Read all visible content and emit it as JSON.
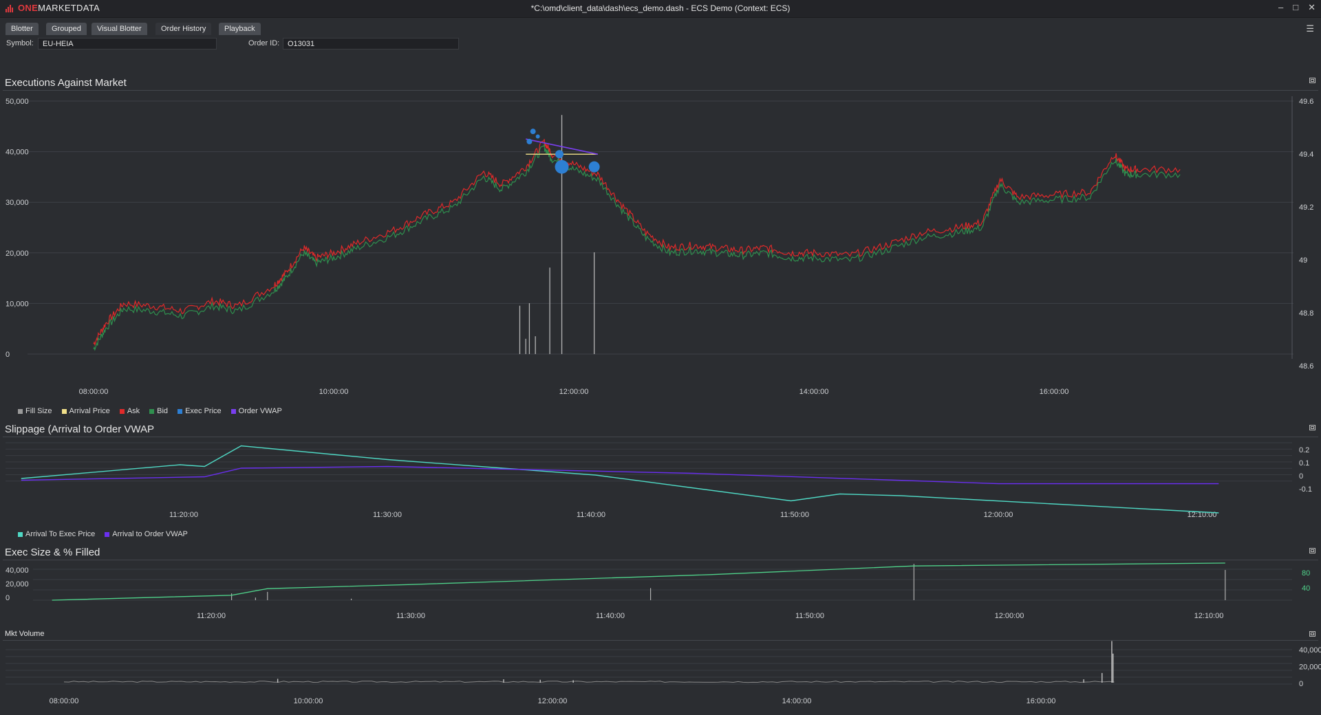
{
  "app": {
    "logo_one": "ONE",
    "logo_md": "MARKETDATA",
    "window_title": "*C:\\omd\\client_data\\dash\\ecs_demo.dash - ECS Demo (Context: ECS)",
    "controls": {
      "minimize": "–",
      "restore": "□",
      "close": "✕"
    }
  },
  "tabs": [
    {
      "label": "Blotter"
    },
    {
      "label": "Grouped"
    },
    {
      "label": "Visual Blotter"
    },
    {
      "label": "Order History"
    },
    {
      "label": "Playback"
    }
  ],
  "filters": {
    "symbol_label": "Symbol:",
    "symbol_value": "EU-HEIA",
    "order_label": "Order ID:",
    "order_value": "O13031"
  },
  "panels": {
    "exec": "Executions Against Market",
    "slip": "Slippage (Arrival to Order VWAP",
    "size": "Exec Size & % Filled",
    "mkt": "Mkt Volume"
  },
  "legends": {
    "exec": [
      {
        "name": "Fill Size",
        "color": "#9a9a9a"
      },
      {
        "name": "Arrival Price",
        "color": "#f1e08a"
      },
      {
        "name": "Ask",
        "color": "#e02a2a"
      },
      {
        "name": "Bid",
        "color": "#2f8f4e"
      },
      {
        "name": "Exec Price",
        "color": "#2d7fd3"
      },
      {
        "name": "Order VWAP",
        "color": "#7a3ff0"
      }
    ],
    "slip": [
      {
        "name": "Arrival To Exec Price",
        "color": "#4fd8c4"
      },
      {
        "name": "Arrival to Order VWAP",
        "color": "#6a2ff0"
      }
    ]
  },
  "chart_data": [
    {
      "type": "line",
      "title": "Executions Against Market",
      "x_ticks": [
        "08:00:00",
        "10:00:00",
        "12:00:00",
        "14:00:00",
        "16:00:00"
      ],
      "y_left_ticks": [
        "50,000",
        "40,000",
        "30,000",
        "20,000",
        "10,000",
        "0"
      ],
      "y_right_ticks": [
        "49.6",
        "49.4",
        "49.2",
        "49",
        "48.8",
        "48.6"
      ],
      "ylim_price": [
        48.6,
        49.6
      ],
      "ylim_size": [
        0,
        50000
      ],
      "series": [
        {
          "name": "Bid",
          "color": "#2f8f4e",
          "points": [
            [
              8.0,
              48.62
            ],
            [
              8.1,
              48.7
            ],
            [
              8.25,
              48.78
            ],
            [
              8.5,
              48.77
            ],
            [
              8.75,
              48.75
            ],
            [
              9.0,
              48.79
            ],
            [
              9.2,
              48.77
            ],
            [
              9.5,
              48.85
            ],
            [
              9.6,
              48.9
            ],
            [
              9.75,
              49.0
            ],
            [
              9.85,
              48.96
            ],
            [
              10.0,
              48.98
            ],
            [
              10.2,
              49.02
            ],
            [
              10.5,
              49.07
            ],
            [
              10.75,
              49.13
            ],
            [
              11.0,
              49.18
            ],
            [
              11.25,
              49.3
            ],
            [
              11.4,
              49.25
            ],
            [
              11.6,
              49.32
            ],
            [
              11.75,
              49.42
            ],
            [
              11.82,
              49.37
            ],
            [
              12.0,
              49.33
            ],
            [
              12.2,
              49.29
            ],
            [
              12.4,
              49.17
            ],
            [
              12.6,
              49.06
            ],
            [
              12.8,
              49.0
            ],
            [
              13.0,
              49.01
            ],
            [
              13.2,
              49.0
            ],
            [
              13.4,
              48.99
            ],
            [
              13.6,
              49.0
            ],
            [
              13.8,
              48.98
            ],
            [
              14.0,
              48.98
            ],
            [
              14.3,
              48.97
            ],
            [
              14.6,
              49.01
            ],
            [
              14.9,
              49.06
            ],
            [
              15.2,
              49.08
            ],
            [
              15.4,
              49.1
            ],
            [
              15.55,
              49.27
            ],
            [
              15.7,
              49.2
            ],
            [
              16.0,
              49.21
            ],
            [
              16.3,
              49.22
            ],
            [
              16.5,
              49.37
            ],
            [
              16.6,
              49.31
            ],
            [
              16.7,
              49.31
            ],
            [
              17.05,
              49.31
            ]
          ]
        },
        {
          "name": "Ask",
          "color": "#e02a2a",
          "points": [
            [
              8.0,
              48.64
            ],
            [
              8.1,
              48.72
            ],
            [
              8.25,
              48.8
            ],
            [
              8.5,
              48.79
            ],
            [
              8.75,
              48.77
            ],
            [
              9.0,
              48.81
            ],
            [
              9.2,
              48.79
            ],
            [
              9.5,
              48.87
            ],
            [
              9.6,
              48.92
            ],
            [
              9.75,
              49.02
            ],
            [
              9.85,
              48.98
            ],
            [
              10.0,
              49.0
            ],
            [
              10.2,
              49.04
            ],
            [
              10.5,
              49.09
            ],
            [
              10.75,
              49.15
            ],
            [
              11.0,
              49.2
            ],
            [
              11.25,
              49.32
            ],
            [
              11.4,
              49.27
            ],
            [
              11.6,
              49.34
            ],
            [
              11.75,
              49.44
            ],
            [
              11.82,
              49.39
            ],
            [
              12.0,
              49.35
            ],
            [
              12.2,
              49.31
            ],
            [
              12.4,
              49.19
            ],
            [
              12.6,
              49.08
            ],
            [
              12.8,
              49.02
            ],
            [
              13.0,
              49.03
            ],
            [
              13.2,
              49.02
            ],
            [
              13.4,
              49.01
            ],
            [
              13.6,
              49.02
            ],
            [
              13.8,
              49.0
            ],
            [
              14.0,
              49.0
            ],
            [
              14.3,
              48.99
            ],
            [
              14.6,
              49.03
            ],
            [
              14.9,
              49.08
            ],
            [
              15.2,
              49.1
            ],
            [
              15.4,
              49.12
            ],
            [
              15.55,
              49.29
            ],
            [
              15.7,
              49.22
            ],
            [
              16.0,
              49.23
            ],
            [
              16.3,
              49.24
            ],
            [
              16.5,
              49.39
            ],
            [
              16.6,
              49.33
            ],
            [
              16.7,
              49.33
            ],
            [
              17.05,
              49.33
            ]
          ]
        },
        {
          "name": "Arrival Price",
          "color": "#f1e08a",
          "points": [
            [
              11.6,
              49.39
            ],
            [
              12.2,
              49.39
            ]
          ]
        },
        {
          "name": "Order VWAP",
          "color": "#7a3ff0",
          "points": [
            [
              11.6,
              49.45
            ],
            [
              12.2,
              49.39
            ]
          ]
        },
        {
          "name": "Exec Price",
          "color": "#2d7fd3",
          "points": [
            [
              11.63,
              49.44
            ],
            [
              11.66,
              49.48
            ],
            [
              11.7,
              49.46
            ],
            [
              11.88,
              49.39
            ],
            [
              11.9,
              49.34
            ],
            [
              12.17,
              49.34
            ]
          ]
        },
        {
          "name": "Fill Size",
          "color": "#9a9a9a",
          "points": [
            [
              11.55,
              9500
            ],
            [
              11.6,
              3000
            ],
            [
              11.63,
              10000
            ],
            [
              11.68,
              3500
            ],
            [
              11.8,
              17000
            ],
            [
              11.9,
              47000
            ],
            [
              12.17,
              20000
            ]
          ]
        }
      ]
    },
    {
      "type": "line",
      "title": "Slippage (Arrival to Order VWAP",
      "x_ticks": [
        "11:20:00",
        "11:30:00",
        "11:40:00",
        "11:50:00",
        "12:00:00",
        "12:10:00"
      ],
      "y_ticks": [
        "0.2",
        "0.1",
        "0",
        "-0.1"
      ],
      "ylim": [
        -0.15,
        0.27
      ],
      "series": [
        {
          "name": "Arrival To Exec Price",
          "color": "#4fd8c4",
          "points": [
            [
              11.2,
              0.05
            ],
            [
              11.33,
              0.13
            ],
            [
              11.35,
              0.12
            ],
            [
              11.38,
              0.24
            ],
            [
              11.5,
              0.16
            ],
            [
              11.67,
              0.07
            ],
            [
              11.83,
              -0.08
            ],
            [
              11.87,
              -0.04
            ],
            [
              11.92,
              -0.05
            ],
            [
              12.18,
              -0.15
            ]
          ]
        },
        {
          "name": "Arrival to Order VWAP",
          "color": "#6a2ff0",
          "points": [
            [
              11.2,
              0.04
            ],
            [
              11.35,
              0.06
            ],
            [
              11.38,
              0.11
            ],
            [
              11.5,
              0.12
            ],
            [
              11.75,
              0.08
            ],
            [
              12.0,
              0.02
            ],
            [
              12.18,
              0.02
            ]
          ]
        }
      ]
    },
    {
      "type": "line",
      "title": "Exec Size & % Filled",
      "x_ticks": [
        "11:20:00",
        "11:30:00",
        "11:40:00",
        "11:50:00",
        "12:00:00",
        "12:10:00"
      ],
      "y_left_ticks": [
        "40,000",
        "20,000",
        "0"
      ],
      "y_right_ticks": [
        "80",
        "40"
      ],
      "series": [
        {
          "name": "% Filled",
          "color": "#4fd28a",
          "points": [
            [
              11.2,
              0
            ],
            [
              11.3,
              8
            ],
            [
              11.35,
              12
            ],
            [
              11.38,
              28
            ],
            [
              11.5,
              38
            ],
            [
              11.75,
              62
            ],
            [
              11.92,
              83
            ],
            [
              12.18,
              90
            ]
          ]
        },
        {
          "name": "Exec Size",
          "color": "#aaaaaa",
          "points": [
            [
              11.35,
              9000
            ],
            [
              11.37,
              3500
            ],
            [
              11.38,
              11000
            ],
            [
              11.45,
              2000
            ],
            [
              11.7,
              16000
            ],
            [
              11.92,
              48000
            ],
            [
              12.18,
              40000
            ]
          ]
        }
      ]
    },
    {
      "type": "bar",
      "title": "Mkt Volume",
      "x_ticks": [
        "08:00:00",
        "10:00:00",
        "12:00:00",
        "14:00:00",
        "16:00:00"
      ],
      "y_ticks": [
        "40,000",
        "20,000",
        "0"
      ],
      "ylim": [
        0,
        44000
      ],
      "series": [
        {
          "name": "Mkt Volume",
          "color": "#bbbbbb",
          "points": [
            [
              9.75,
              4000
            ],
            [
              11.6,
              3500
            ],
            [
              11.9,
              3000
            ],
            [
              12.17,
              2500
            ],
            [
              16.35,
              3500
            ],
            [
              16.5,
              10000
            ],
            [
              16.58,
              43000
            ],
            [
              16.59,
              30000
            ]
          ]
        }
      ]
    }
  ]
}
